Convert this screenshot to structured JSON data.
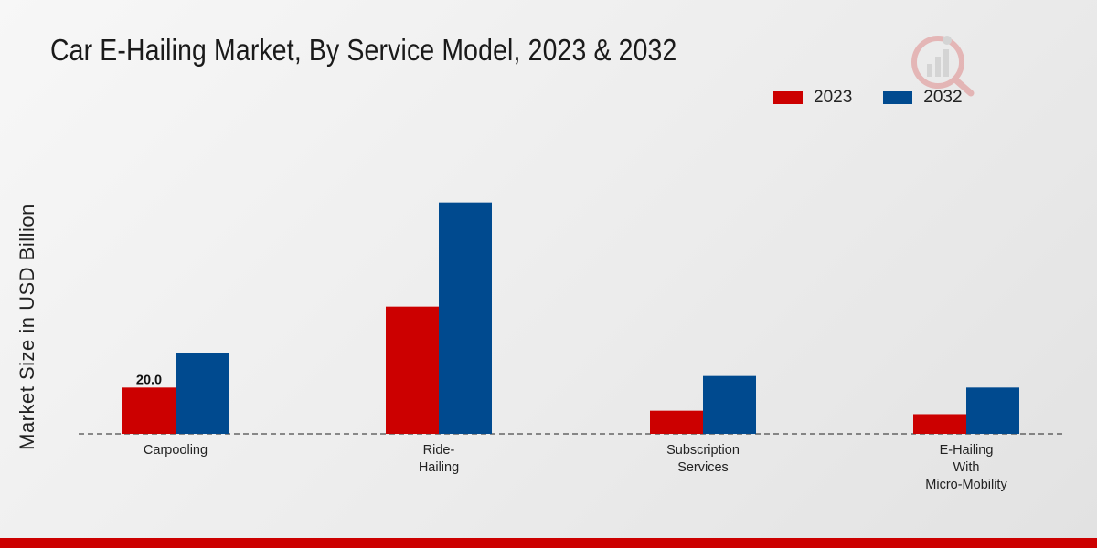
{
  "header": {
    "title": "Car E-Hailing Market, By Service Model, 2023 & 2032"
  },
  "chart_data": {
    "type": "bar",
    "title": "Car E-Hailing Market, By Service Model, 2023 & 2032",
    "xlabel": "",
    "ylabel": "Market Size in USD Billion",
    "categories": [
      [
        "Carpooling"
      ],
      [
        "Ride-",
        "Hailing"
      ],
      [
        "Subscription",
        "Services"
      ],
      [
        "E-Hailing",
        "With",
        "Micro-Mobility"
      ]
    ],
    "series": [
      {
        "name": "2023",
        "color": "#cc0000",
        "values": [
          20.0,
          55.0,
          10.0,
          8.5
        ]
      },
      {
        "name": "2032",
        "color": "#004a8f",
        "values": [
          35.0,
          100.0,
          25.0,
          20.0
        ]
      }
    ],
    "data_labels": [
      {
        "series": 0,
        "index": 0,
        "text": "20.0"
      }
    ],
    "ylim": [
      0,
      150
    ],
    "grid": false,
    "legend_position": "top-right"
  }
}
